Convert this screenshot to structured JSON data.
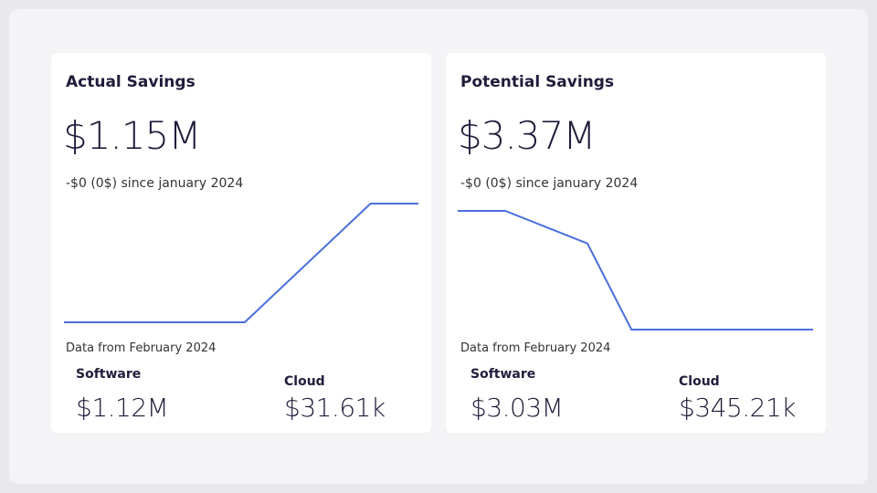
{
  "cards": [
    {
      "title": "Actual Savings",
      "value": "$1.15M",
      "change": "-$0 (0$) since january 2024",
      "trend": {
        "x": [
          0,
          5.1,
          8.65,
          10
        ],
        "values": [
          0,
          0,
          1.15,
          1.15
        ],
        "color": "#4a6fdc"
      },
      "footnote": "Data from February 2024",
      "breakdown": [
        {
          "label": "Software",
          "value": "$1.12M"
        },
        {
          "label": "Cloud",
          "value": "$31.61k"
        }
      ]
    },
    {
      "title": "Potential Savings",
      "value": "$3.37M",
      "change": "-$0 (0$) since january 2024",
      "trend": {
        "x": [
          0,
          1.34,
          3.65,
          4.89,
          10
        ],
        "values": [
          4.5,
          4.5,
          4.19,
          3.37,
          3.37
        ],
        "color": "#4a6fdc"
      },
      "footnote": "Data from February 2024",
      "breakdown": [
        {
          "label": "Software",
          "value": "$3.03M"
        },
        {
          "label": "Cloud",
          "value": "$345.21k"
        }
      ]
    }
  ]
}
